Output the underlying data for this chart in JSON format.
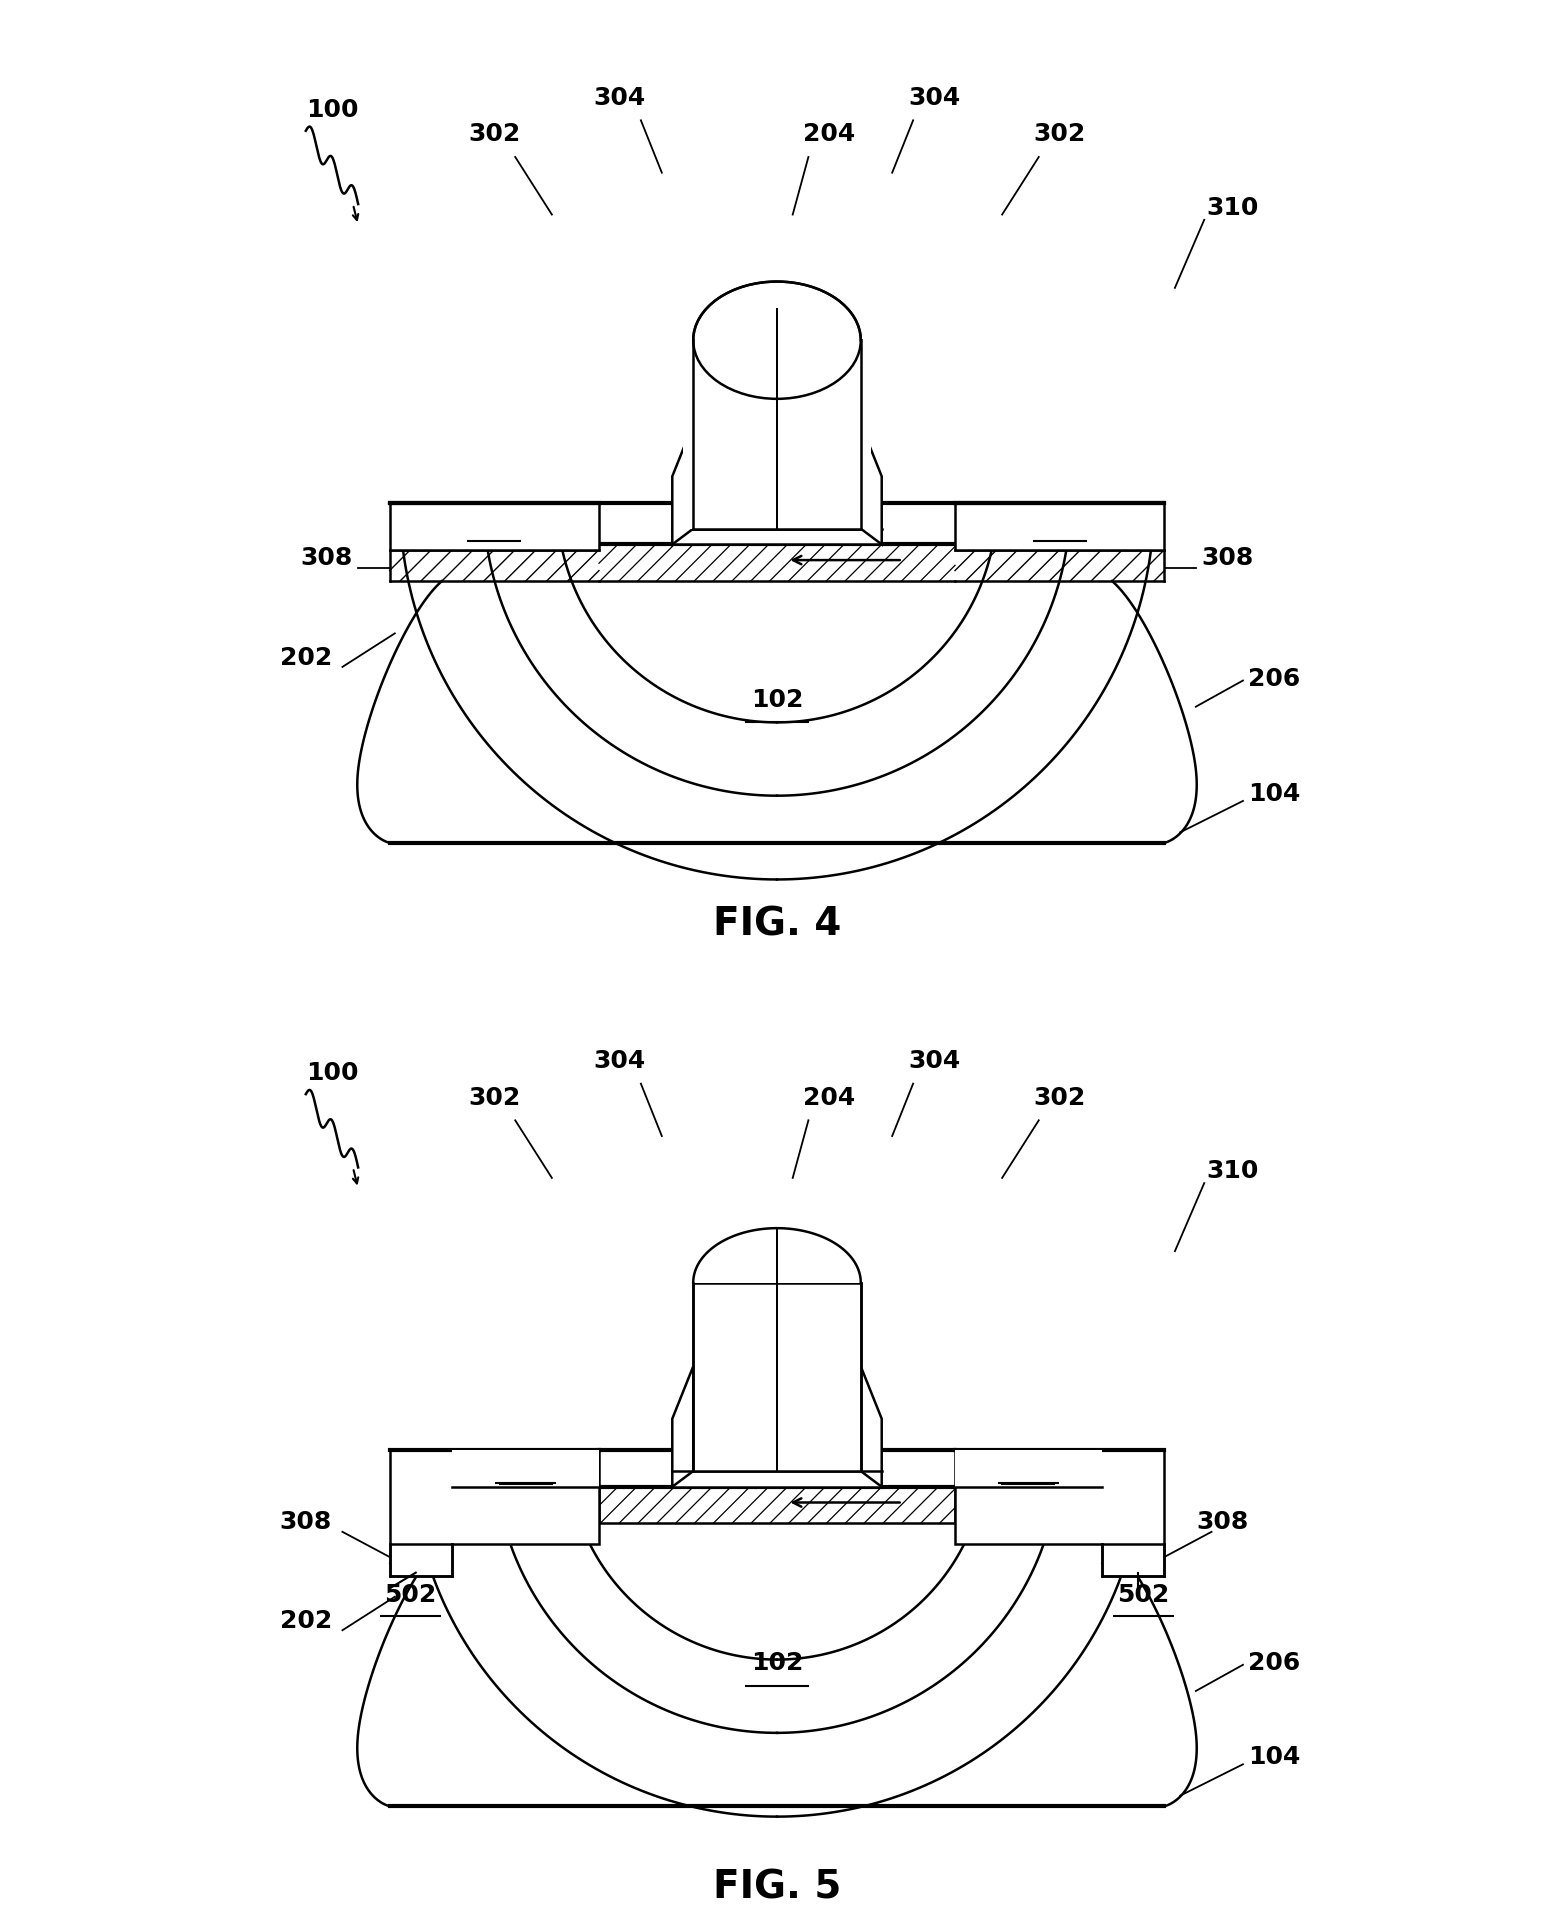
{
  "background_color": "#ffffff",
  "line_color": "#000000",
  "lw": 1.8,
  "lw_thick": 3.0,
  "label_fontsize": 18,
  "fig_label_fontsize": 28,
  "fig4_label": "FIG. 4",
  "fig5_label": "FIG. 5"
}
